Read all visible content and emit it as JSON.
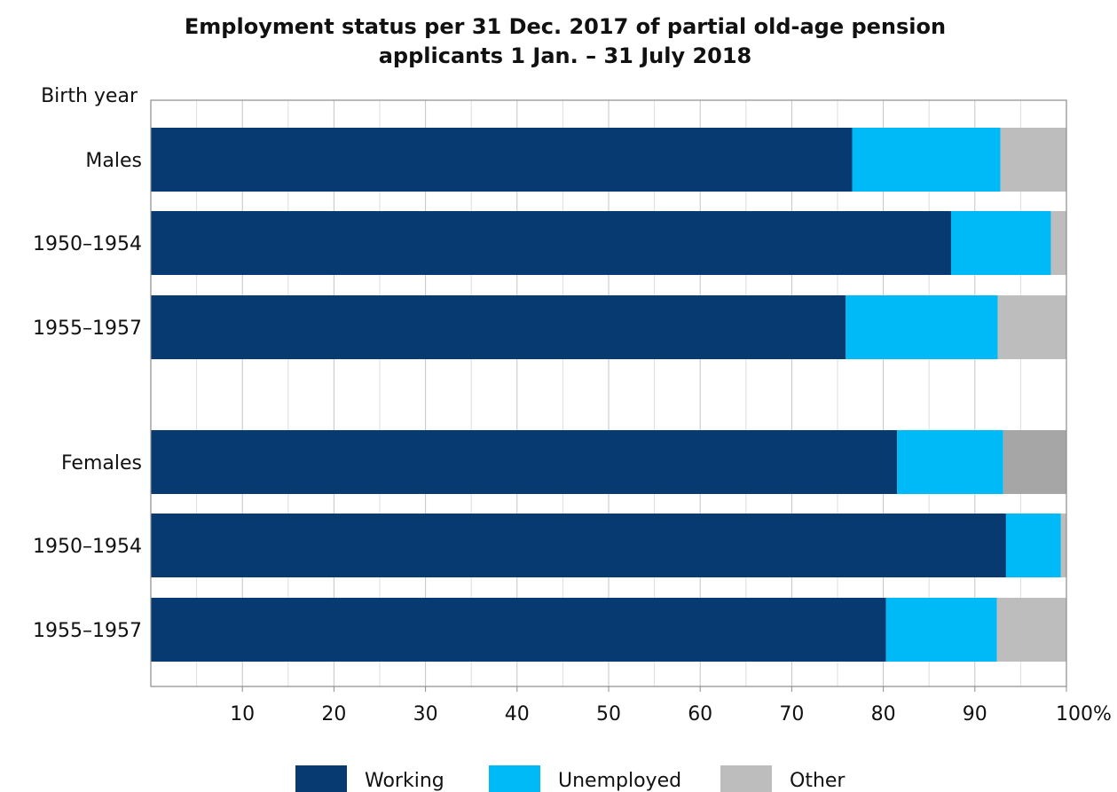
{
  "chart_data": {
    "type": "bar",
    "orientation": "horizontal",
    "stacked": true,
    "title": "Employment status per 31 Dec. 2017 of partial old-age pension applicants 1 Jan. – 31 July 2018",
    "title_lines": [
      "Employment status per 31 Dec. 2017 of partial old-age pension",
      "applicants 1 Jan. – 31 July 2018"
    ],
    "ylabel": "Birth year",
    "xlabel": "",
    "xlim": [
      0,
      100
    ],
    "x_ticks": [
      {
        "value": 10,
        "label": "10"
      },
      {
        "value": 20,
        "label": "20"
      },
      {
        "value": 30,
        "label": "30"
      },
      {
        "value": 40,
        "label": "40"
      },
      {
        "value": 50,
        "label": "50"
      },
      {
        "value": 60,
        "label": "60"
      },
      {
        "value": 70,
        "label": "70"
      },
      {
        "value": 80,
        "label": "80"
      },
      {
        "value": 90,
        "label": "90"
      },
      {
        "value": 100,
        "label": "100%"
      }
    ],
    "minor_gridlines_every": 5,
    "grid": true,
    "legend_position": "bottom",
    "categories": [
      "Males",
      "1950–1954",
      "1955–1957",
      "Females",
      "1950–1954",
      "1955–1957"
    ],
    "series": [
      {
        "name": "Working",
        "color": "#063a70",
        "values": [
          76.6,
          87.4,
          75.9,
          81.5,
          93.4,
          80.3
        ]
      },
      {
        "name": "Unemployed",
        "color": "#00b9f7",
        "values": [
          16.2,
          10.9,
          16.6,
          11.6,
          6.0,
          12.1
        ]
      },
      {
        "name": "Other",
        "color": "#bdbdbd",
        "values": [
          7.2,
          1.7,
          7.5,
          6.9,
          0.6,
          7.6
        ]
      }
    ],
    "other_bar_colors": [
      "#bdbdbd",
      "#bdbdbd",
      "#bdbdbd",
      "#a6a6a6",
      "#bdbdbd",
      "#bdbdbd"
    ]
  }
}
